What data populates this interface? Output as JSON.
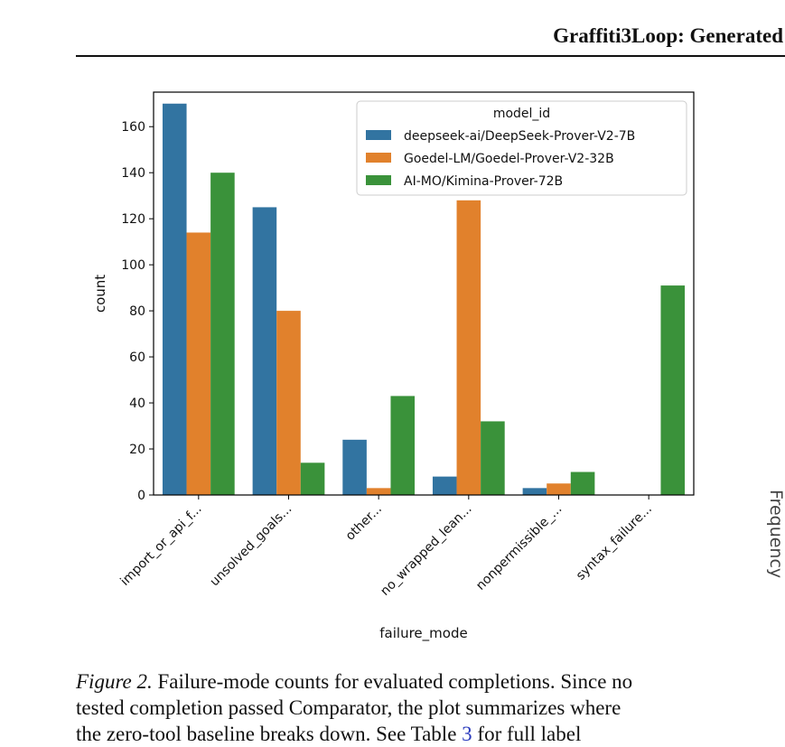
{
  "header": {
    "title": "Graffiti3Loop: Generated"
  },
  "side_label": "Frequency",
  "caption": {
    "figure_label": "Figure 2.",
    "line1": "Failure-mode counts for evaluated completions. Since no",
    "line2": "tested completion passed Comparator, the plot summarizes where",
    "line3_pre": "the zero-tool baseline breaks down. See Table",
    "line3_ref": "3",
    "line3_post": "for full label"
  },
  "colors": {
    "blue": "#3274a1",
    "orange": "#e1812c",
    "green": "#3a923a"
  },
  "chart_data": {
    "type": "bar",
    "xlabel": "failure_mode",
    "ylabel": "count",
    "ylim": [
      0,
      175
    ],
    "yticks": [
      0,
      20,
      40,
      60,
      80,
      100,
      120,
      140,
      160
    ],
    "grid": false,
    "legend": {
      "title": "model_id",
      "placement": "top-right"
    },
    "categories": [
      "import_or_api_f...",
      "unsolved_goals...",
      "other...",
      "no_wrapped_lean...",
      "nonpermissible_...",
      "syntax_failure..."
    ],
    "series": [
      {
        "name": "deepseek-ai/DeepSeek-Prover-V2-7B",
        "color": "#3274a1",
        "values": [
          170,
          125,
          24,
          8,
          3,
          0
        ]
      },
      {
        "name": "Goedel-LM/Goedel-Prover-V2-32B",
        "color": "#e1812c",
        "values": [
          114,
          80,
          3,
          128,
          5,
          0
        ]
      },
      {
        "name": "AI-MO/Kimina-Prover-72B",
        "color": "#3a923a",
        "values": [
          140,
          14,
          43,
          32,
          10,
          91
        ]
      }
    ]
  }
}
